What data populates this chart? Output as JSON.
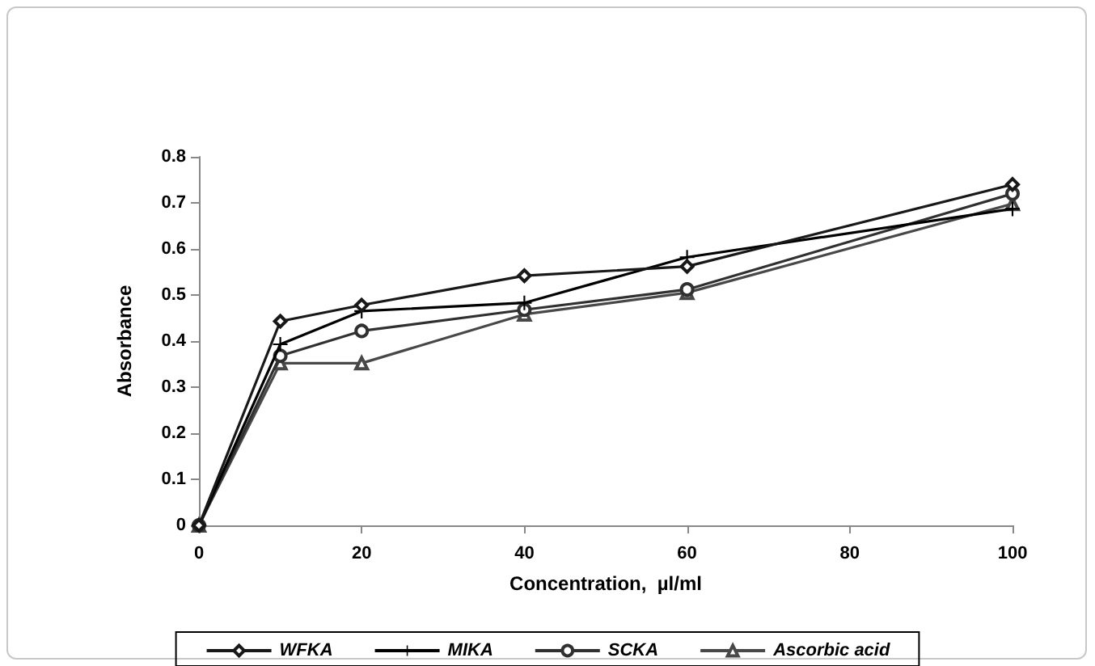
{
  "chart_data": {
    "type": "line",
    "xlabel": "Concentration,  µl/ml",
    "ylabel": "Absorbance",
    "x": [
      0,
      10,
      20,
      40,
      60,
      100
    ],
    "series": [
      {
        "name": "WFKA",
        "color": "#181818",
        "marker": "diamond",
        "values": [
          0,
          0.443,
          0.478,
          0.542,
          0.562,
          0.74
        ]
      },
      {
        "name": "MIKA",
        "color": "#000000",
        "marker": "cross",
        "values": [
          0,
          0.393,
          0.465,
          0.483,
          0.582,
          0.687
        ]
      },
      {
        "name": "SCKA",
        "color": "#303030",
        "marker": "circle",
        "values": [
          0,
          0.368,
          0.422,
          0.468,
          0.512,
          0.72
        ]
      },
      {
        "name": "Ascorbic acid",
        "color": "#484848",
        "marker": "triangle",
        "values": [
          0,
          0.352,
          0.352,
          0.458,
          0.505,
          0.698
        ]
      }
    ],
    "xlim": [
      0,
      100
    ],
    "xticks": [
      0,
      20,
      40,
      60,
      80,
      100
    ],
    "ylim": [
      0,
      0.8
    ],
    "yticks": [
      0,
      0.1,
      0.2,
      0.3,
      0.4,
      0.5,
      0.6,
      0.7,
      0.8
    ],
    "grid": false,
    "legend": "bottom",
    "line_style": "solid"
  }
}
